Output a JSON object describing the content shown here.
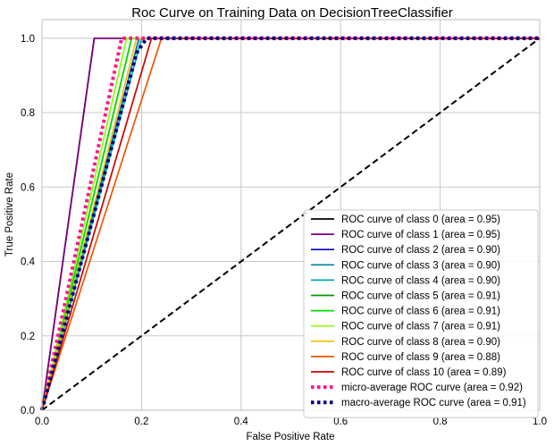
{
  "chart_data": {
    "type": "line",
    "title": "Roc Curve on Training Data on DecisionTreeClassifier",
    "xlabel": "False Positive Rate",
    "ylabel": "True Positive Rate",
    "xlim": [
      0.0,
      1.0
    ],
    "ylim": [
      0.0,
      1.05
    ],
    "xticks": [
      "0.0",
      "0.2",
      "0.4",
      "0.6",
      "0.8",
      "1.0"
    ],
    "yticks": [
      "0.0",
      "0.2",
      "0.4",
      "0.6",
      "0.8",
      "1.0"
    ],
    "grid": true,
    "legend_position": "lower right",
    "series": [
      {
        "name": "ROC curve of class 0 (area = 0.95)",
        "color": "#000000",
        "style": "solid",
        "x": [
          0.0,
          0.105,
          1.0
        ],
        "y": [
          0.0,
          1.0,
          1.0
        ]
      },
      {
        "name": "ROC curve of class 1 (area = 0.95)",
        "color": "#7f007f",
        "style": "solid",
        "x": [
          0.0,
          0.105,
          1.0
        ],
        "y": [
          0.0,
          1.0,
          1.0
        ]
      },
      {
        "name": "ROC curve of class 2 (area = 0.90)",
        "color": "#0000c8",
        "style": "solid",
        "x": [
          0.0,
          0.195,
          1.0
        ],
        "y": [
          0.0,
          1.0,
          1.0
        ]
      },
      {
        "name": "ROC curve of class 3 (area = 0.90)",
        "color": "#0080a0",
        "style": "solid",
        "x": [
          0.0,
          0.195,
          1.0
        ],
        "y": [
          0.0,
          1.0,
          1.0
        ]
      },
      {
        "name": "ROC curve of class 4 (area = 0.90)",
        "color": "#00aaaa",
        "style": "solid",
        "x": [
          0.0,
          0.2,
          1.0
        ],
        "y": [
          0.0,
          1.0,
          1.0
        ]
      },
      {
        "name": "ROC curve of class 5 (area = 0.91)",
        "color": "#009900",
        "style": "solid",
        "x": [
          0.0,
          0.18,
          1.0
        ],
        "y": [
          0.0,
          1.0,
          1.0
        ]
      },
      {
        "name": "ROC curve of class 6 (area = 0.91)",
        "color": "#00dd00",
        "style": "solid",
        "x": [
          0.0,
          0.18,
          1.0
        ],
        "y": [
          0.0,
          1.0,
          1.0
        ]
      },
      {
        "name": "ROC curve of class 7 (area = 0.91)",
        "color": "#88ff00",
        "style": "solid",
        "x": [
          0.0,
          0.17,
          1.0
        ],
        "y": [
          0.0,
          1.0,
          1.0
        ]
      },
      {
        "name": "ROC curve of class 8 (area = 0.90)",
        "color": "#f0c000",
        "style": "solid",
        "x": [
          0.0,
          0.19,
          1.0
        ],
        "y": [
          0.0,
          1.0,
          1.0
        ]
      },
      {
        "name": "ROC curve of class 9 (area = 0.88)",
        "color": "#ee5500",
        "style": "solid",
        "x": [
          0.0,
          0.24,
          1.0
        ],
        "y": [
          0.0,
          1.0,
          1.0
        ]
      },
      {
        "name": "ROC curve of class 10 (area = 0.89)",
        "color": "#cc0000",
        "style": "solid",
        "x": [
          0.0,
          0.22,
          1.0
        ],
        "y": [
          0.0,
          1.0,
          1.0
        ]
      },
      {
        "name": "micro-average ROC curve (area = 0.92)",
        "color": "#ff1493",
        "style": "dotted",
        "x": [
          0.0,
          0.16,
          1.0
        ],
        "y": [
          0.0,
          1.0,
          1.0
        ]
      },
      {
        "name": "macro-average ROC curve (area = 0.91)",
        "color": "#000080",
        "style": "dotted",
        "x": [
          0.0,
          0.02,
          0.19,
          0.21,
          1.0
        ],
        "y": [
          0.0,
          0.1,
          0.96,
          1.0,
          1.0
        ]
      },
      {
        "name": "",
        "color": "#000000",
        "style": "dashed",
        "x": [
          0.0,
          1.0
        ],
        "y": [
          0.0,
          1.0
        ]
      }
    ]
  }
}
